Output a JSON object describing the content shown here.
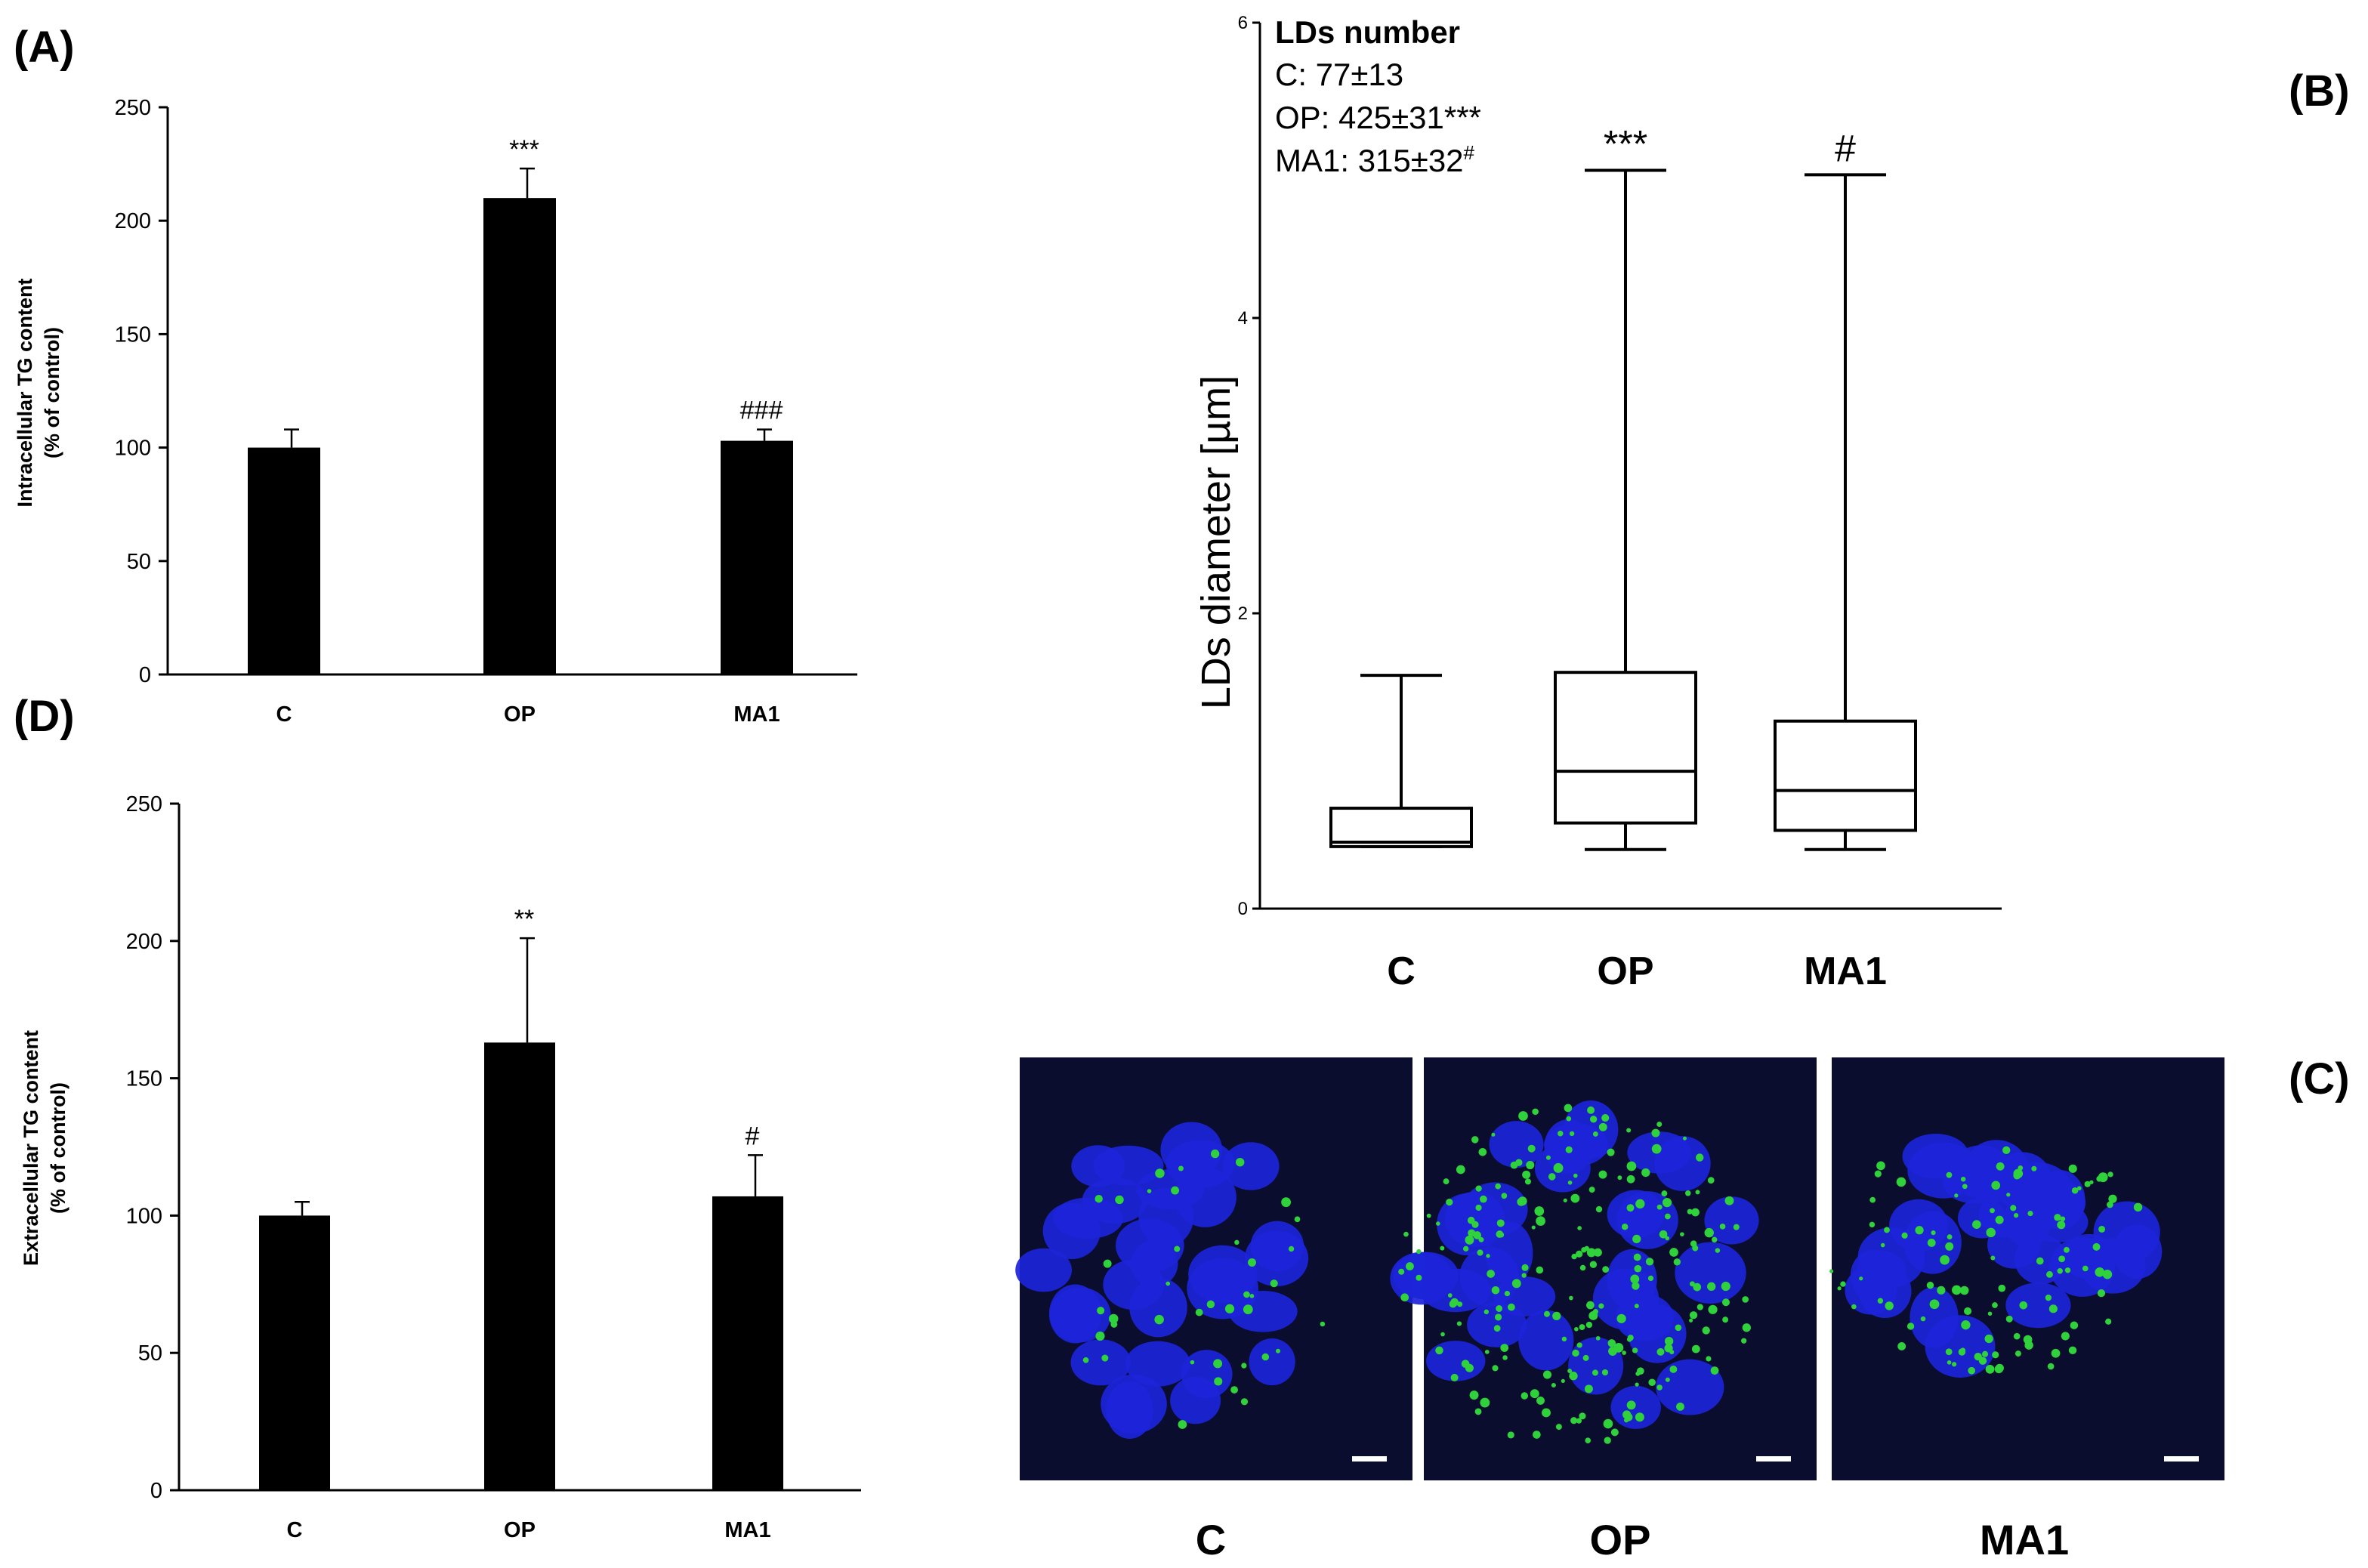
{
  "panel_labels": {
    "A": "(A)",
    "B": "(B)",
    "C": "(C)",
    "D": "(D)"
  },
  "colors": {
    "bar": "#000000",
    "micrograph_bg": "#0a0d2e",
    "nucleus": "#1c24d9",
    "lipid_droplet": "#2fd23a",
    "scale_bar": "#ffffff"
  },
  "chart_data": [
    {
      "id": "A",
      "type": "bar",
      "ylabel_line1": "Intracellular TG content",
      "ylabel_line2": "(% of control)",
      "categories": [
        "C",
        "OP",
        "MA1"
      ],
      "values": [
        100,
        210,
        103
      ],
      "errors": [
        8,
        13,
        5
      ],
      "annotations": [
        "",
        "***",
        "###"
      ],
      "ylim": [
        0,
        250
      ],
      "yticks": [
        "0",
        "50",
        "100",
        "150",
        "200",
        "250"
      ],
      "grid": false
    },
    {
      "id": "B",
      "type": "box",
      "ylabel": "LDs diameter [µm]",
      "categories": [
        "C",
        "OP",
        "MA1"
      ],
      "whisker_low": [
        0.42,
        0.4,
        0.4
      ],
      "q1": [
        0.42,
        0.58,
        0.53
      ],
      "median": [
        0.45,
        0.93,
        0.8
      ],
      "q3": [
        0.68,
        1.6,
        1.27
      ],
      "whisker_high": [
        1.58,
        5.0,
        4.97
      ],
      "annotations": [
        "",
        "***",
        "#"
      ],
      "ylim": [
        0,
        6
      ],
      "yticks": [
        "0",
        "2",
        "4",
        "6"
      ],
      "inset": {
        "title": "LDs number",
        "line_C": "C: 77±13",
        "line_OP": "OP: 425±31***",
        "line_MA1_main": "MA1: 315±32",
        "line_MA1_sup": "#"
      },
      "grid": false
    },
    {
      "id": "D",
      "type": "bar",
      "ylabel_line1": "Extracellular TG content",
      "ylabel_line2": "(% of control)",
      "categories": [
        "C",
        "OP",
        "MA1"
      ],
      "values": [
        100,
        163,
        107
      ],
      "errors": [
        5,
        38,
        15
      ],
      "annotations": [
        "",
        "**",
        "#"
      ],
      "ylim": [
        0,
        250
      ],
      "yticks": [
        "0",
        "50",
        "100",
        "150",
        "200",
        "250"
      ],
      "grid": false
    }
  ],
  "micrographs": {
    "labels": [
      "C",
      "OP",
      "MA1"
    ],
    "lipid_droplet_density": [
      "low",
      "high",
      "medium"
    ]
  }
}
